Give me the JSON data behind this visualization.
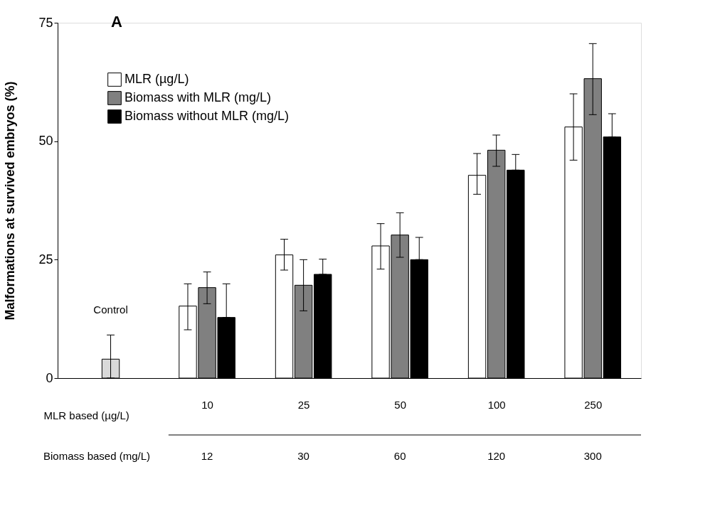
{
  "chart_data": {
    "type": "bar",
    "title": "A",
    "ylabel": "Malformations at survived embryos (%)",
    "xlabel": "MLR based (µg/L)",
    "categories": [
      null,
      "10",
      "25",
      "50",
      "100",
      "250"
    ],
    "series": [
      {
        "name": "MLR (µg/L)",
        "color": "#ffffff",
        "values": [
          null,
          15.2,
          26,
          27.9,
          42.8,
          53
        ],
        "errors": [
          null,
          [
            10.2,
            19.9
          ],
          [
            22.8,
            29.3
          ],
          [
            23,
            32.6
          ],
          [
            38.8,
            47.4
          ],
          [
            46,
            60
          ]
        ]
      },
      {
        "name": "Biomass with MLR (mg/L)",
        "color": "#808080",
        "values": [
          null,
          19.1,
          19.6,
          30.2,
          48.1,
          63.2
        ],
        "errors": [
          null,
          [
            15.7,
            22.4
          ],
          [
            14.2,
            25
          ],
          [
            25.5,
            34.9
          ],
          [
            44.7,
            51.3
          ],
          [
            55.6,
            70.6
          ]
        ]
      },
      {
        "name": "Biomass without MLR (mg/L)",
        "color": "#000000",
        "values": [
          null,
          12.8,
          21.9,
          25,
          43.9,
          50.9
        ],
        "errors": [
          null,
          [
            12.8,
            19.9
          ],
          [
            21.9,
            25.1
          ],
          [
            25,
            29.7
          ],
          [
            43.9,
            47.2
          ],
          [
            50.9,
            55.8
          ]
        ]
      },
      {
        "color": "#d9d9d9",
        "values": [
          4,
          null,
          null,
          null,
          null,
          null
        ],
        "errors": [
          [
            0,
            9.1
          ],
          null,
          null,
          null,
          null,
          null
        ]
      }
    ],
    "ylim": [
      0,
      75
    ],
    "yticks": [
      0,
      25,
      50,
      75
    ],
    "annotations": [
      "Control",
      "Biomass based (mg/L)",
      "12",
      "30",
      "60",
      "120",
      "300"
    ],
    "legend": "top left",
    "grid": false
  }
}
